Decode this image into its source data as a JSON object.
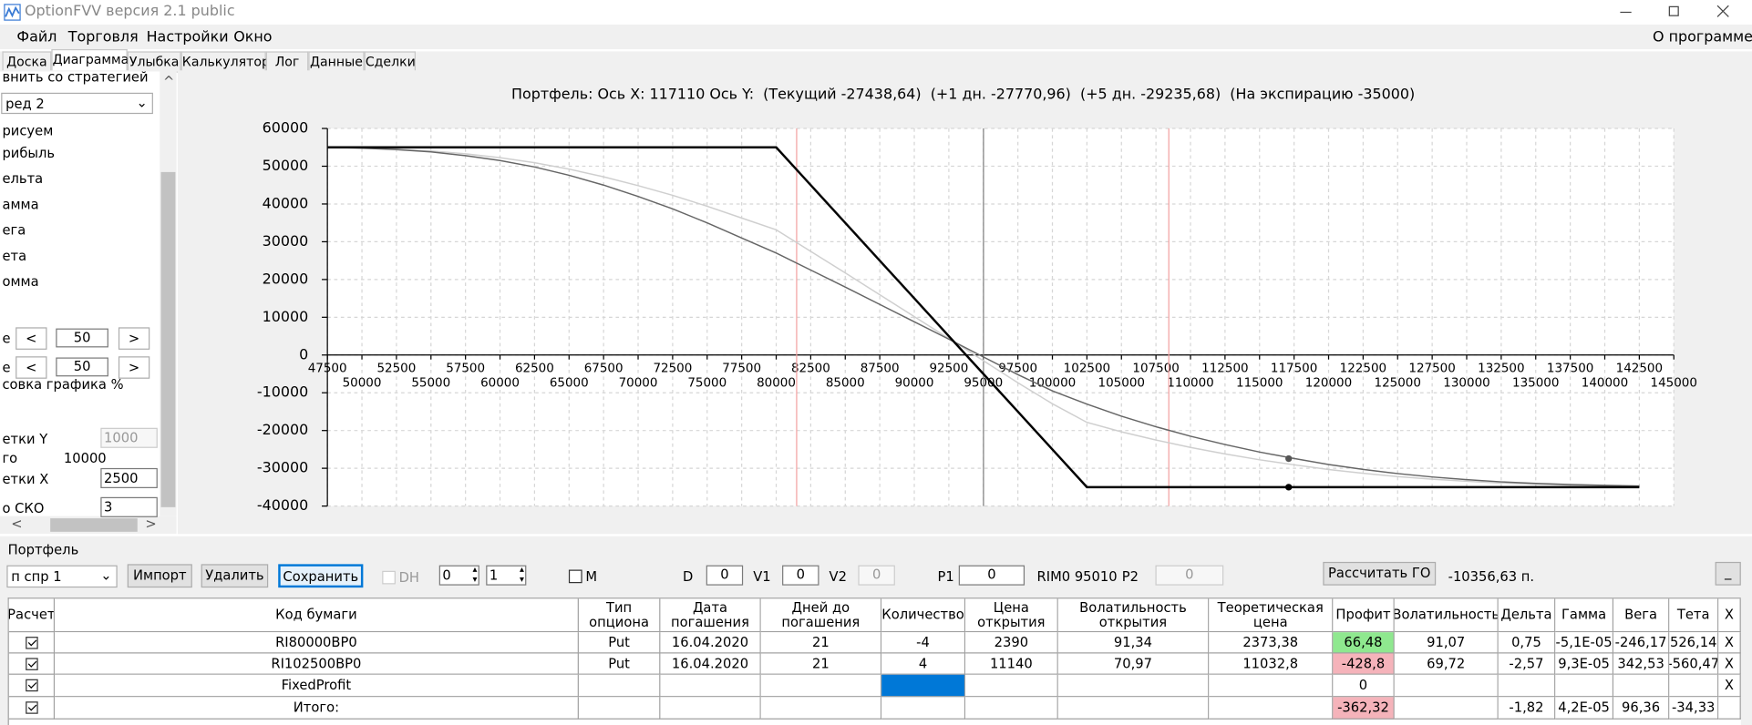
{
  "window": {
    "title": "OptionFVV версия 2.1 public"
  },
  "menu": [
    "Файл",
    "Торговля",
    "Настройки",
    "Окно"
  ],
  "about": "О программе",
  "tabs": [
    "Доска",
    "Диаграмма",
    "Улыбка",
    "Калькулятор",
    "Лог",
    "Данные",
    "Сделки"
  ],
  "left_panel": {
    "strategy_label": "внить со стратегией",
    "strategy": "ред 2",
    "draw_label": "рисуем",
    "draw_items": [
      "рибыль",
      "ельта",
      "амма",
      "ега",
      "ета",
      "омма"
    ],
    "scale_label": "совка графика %",
    "scale_rows": [
      {
        "label": "е",
        "minus": "<",
        "value": "50",
        "plus": ">"
      },
      {
        "label": "е",
        "minus": "<",
        "value": "50",
        "plus": ">"
      }
    ],
    "fields": [
      {
        "label": "етки Y",
        "value": "1000"
      },
      {
        "label": "го",
        "value": "10000"
      },
      {
        "label": "етки X",
        "value": "2500"
      },
      {
        "label": "о СКО",
        "value": "3"
      }
    ]
  },
  "chart_data": {
    "type": "line",
    "title": "Портфель: Ось X: 117110 Ось Y:  (Текущий -27438,64)  (+1 дн. -27770,96)  (+5 дн. -29235,68)  (На экспирацию -35000)",
    "x": [
      47500,
      50000,
      52500,
      55000,
      57500,
      60000,
      62500,
      65000,
      67500,
      70000,
      72500,
      75000,
      77500,
      80000,
      82500,
      85000,
      87500,
      90000,
      92500,
      95000,
      97500,
      100000,
      102500,
      105000,
      107500,
      110000,
      112500,
      115000,
      117500,
      120000,
      122500,
      125000,
      127500,
      130000,
      132500,
      135000,
      137500,
      140000,
      142500
    ],
    "series": [
      {
        "color": "#cfcfcf",
        "values": [
          55000,
          54840,
          54530,
          54060,
          53280,
          52270,
          50940,
          49230,
          47200,
          44860,
          42290,
          39400,
          36280,
          33160,
          27450,
          21740,
          15950,
          10160,
          4380,
          -1490,
          -7360,
          -12910,
          -17840,
          -20340,
          -22520,
          -24470,
          -26190,
          -27750,
          -29070,
          -30320,
          -31330,
          -32190,
          -32890,
          -33440,
          -33910,
          -34220,
          -34450,
          -34610,
          -34770
        ]
      },
      {
        "color": "#666666",
        "values": [
          55000,
          54800,
          54400,
          53800,
          52800,
          51500,
          49800,
          47600,
          45000,
          42000,
          38700,
          35000,
          31000,
          27000,
          22500,
          18000,
          13400,
          8800,
          4200,
          -500,
          -5200,
          -9500,
          -13000,
          -16200,
          -19000,
          -21500,
          -23700,
          -25700,
          -27400,
          -29000,
          -30300,
          -31400,
          -32300,
          -33000,
          -33600,
          -34000,
          -34300,
          -34500,
          -34700
        ]
      },
      {
        "color": "#000000",
        "values": [
          55000,
          55000,
          55000,
          55000,
          55000,
          55000,
          55000,
          55000,
          55000,
          55000,
          55000,
          55000,
          55000,
          55000,
          45000,
          35000,
          25000,
          15000,
          5000,
          -5000,
          -15000,
          -25000,
          -35000,
          -35000,
          -35000,
          -35000,
          -35000,
          -35000,
          -35000,
          -35000,
          -35000,
          -35000,
          -35000,
          -35000,
          -35000,
          -35000,
          -35000,
          -35000,
          -35000
        ]
      }
    ],
    "points": [
      {
        "x": 117110,
        "y": -27438.64,
        "color": "#555555"
      },
      {
        "x": 117110,
        "y": -35000,
        "color": "#000000"
      }
    ],
    "vlines": [
      {
        "x": 81480,
        "color": "#f3a0a0"
      },
      {
        "x": 95010,
        "color": "#808080"
      },
      {
        "x": 108430,
        "color": "#f3a0a0"
      }
    ],
    "xlim": [
      47500,
      145000
    ],
    "xticks": [
      47500,
      50000,
      52500,
      55000,
      57500,
      60000,
      62500,
      65000,
      67500,
      70000,
      72500,
      75000,
      77500,
      80000,
      82500,
      85000,
      87500,
      90000,
      92500,
      95000,
      97500,
      100000,
      102500,
      105000,
      107500,
      110000,
      112500,
      115000,
      117500,
      120000,
      122500,
      125000,
      127500,
      130000,
      132500,
      135000,
      137500,
      140000,
      142500,
      145000
    ],
    "ylim": [
      -40000,
      60000
    ],
    "yticks": [
      -40000,
      -30000,
      -20000,
      -10000,
      0,
      10000,
      20000,
      30000,
      40000,
      50000,
      60000
    ],
    "grid": true
  },
  "portfolio": {
    "label": "Портфель",
    "selector": "п спр 1",
    "import": "Импорт",
    "delete": "Удалить",
    "save": "Сохранить",
    "dh": "DH",
    "spin1": "0",
    "spin2": "1",
    "m": "M",
    "d_label": "D",
    "d": "0",
    "v1_label": "V1",
    "v1": "0",
    "v2_label": "V2",
    "v2": "0",
    "p1_label": "P1",
    "p1": "0",
    "price": "RIM0 95010",
    "p2_label": "P2",
    "p2": "0",
    "calc": "Рассчитать ГО",
    "margin": "-10356,63 п.",
    "minimize": "_"
  },
  "table": {
    "headers": [
      "Расчет",
      "Код бумаги",
      "Тип опциона",
      "Дата погашения",
      "Дней до погашения",
      "Количество",
      "Цена открытия",
      "Волатильность открытия",
      "Теоретическая цена",
      "Профит",
      "Волатильность",
      "Дельта",
      "Гамма",
      "Вега",
      "Тета",
      "X"
    ],
    "rows": [
      {
        "cells": [
          "RI80000BP0",
          "Put",
          "16.04.2020",
          "21",
          "-4",
          "2390",
          "91,34",
          "2373,38",
          "66,48",
          "91,07",
          "0,75",
          "-5,1E-05",
          "-246,17",
          "526,14",
          "X"
        ],
        "profit_color": "#8fe88f"
      },
      {
        "cells": [
          "RI102500BP0",
          "Put",
          "16.04.2020",
          "21",
          "4",
          "11140",
          "70,97",
          "11032,8",
          "-428,8",
          "69,72",
          "-2,57",
          "9,3E-05",
          "342,53",
          "-560,47",
          "X"
        ],
        "profit_color": "#f5b3ba"
      },
      {
        "cells": [
          "FixedProfit",
          null,
          null,
          null,
          null,
          null,
          null,
          null,
          "0",
          null,
          null,
          null,
          null,
          null,
          "X"
        ],
        "quantity_color": "#0078d7"
      },
      {
        "cells": [
          "Итого:",
          null,
          null,
          null,
          null,
          null,
          null,
          null,
          "-362,32",
          null,
          "-1,82",
          "4,2E-05",
          "96,36",
          "-34,33",
          null
        ],
        "profit_color": "#f5b3ba"
      }
    ]
  }
}
